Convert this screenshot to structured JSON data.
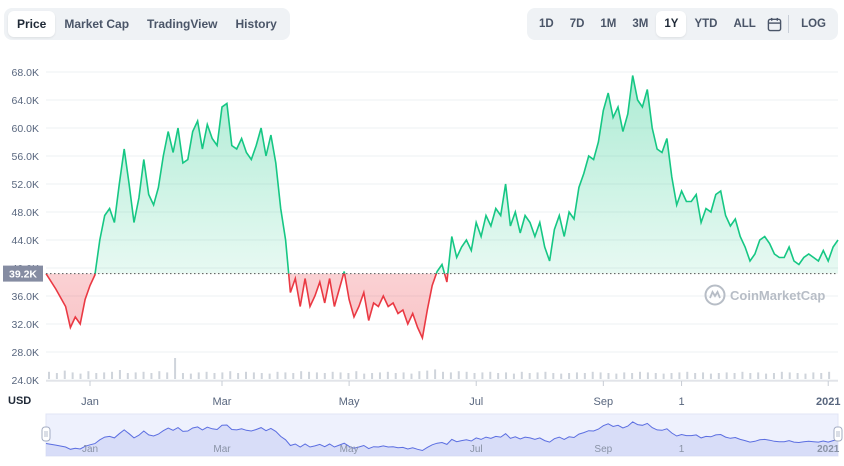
{
  "tabs": [
    {
      "label": "Price",
      "active": true
    },
    {
      "label": "Market Cap",
      "active": false
    },
    {
      "label": "TradingView",
      "active": false
    },
    {
      "label": "History",
      "active": false
    }
  ],
  "ranges": [
    {
      "label": "1D",
      "active": false
    },
    {
      "label": "7D",
      "active": false
    },
    {
      "label": "1M",
      "active": false
    },
    {
      "label": "3M",
      "active": false
    },
    {
      "label": "1Y",
      "active": true
    },
    {
      "label": "YTD",
      "active": false
    },
    {
      "label": "ALL",
      "active": false
    }
  ],
  "log_label": "LOG",
  "calendar_icon": "calendar-icon",
  "currency": "USD",
  "watermark": "CoinMarketCap",
  "colors": {
    "up": "#16c784",
    "down": "#ea3943",
    "baseline": "#555555",
    "volume": "#cfd4db",
    "navigator": "#5b6ee1"
  },
  "chart_data": {
    "type": "line",
    "y_unit": "USD",
    "ylim": [
      24000,
      70000
    ],
    "y_ticks": [
      "24.0K",
      "28.0K",
      "32.0K",
      "36.0K",
      "40.0K",
      "44.0K",
      "48.0K",
      "52.0K",
      "56.0K",
      "60.0K",
      "64.0K",
      "68.0K"
    ],
    "y_tick_values": [
      24000,
      28000,
      32000,
      36000,
      40000,
      44000,
      48000,
      52000,
      56000,
      60000,
      64000,
      68000
    ],
    "x_ticks": [
      "Jan",
      "Mar",
      "May",
      "Jul",
      "Sep",
      "1",
      "2021"
    ],
    "x_tick_positions": [
      0.09,
      0.36,
      0.62,
      0.88,
      1.14,
      1.3,
      1.6
    ],
    "x_range": [
      0.0,
      1.62
    ],
    "baseline": 39200,
    "baseline_label": "39.2K",
    "grid": true,
    "series": [
      {
        "x": [
          0.0,
          0.02,
          0.04,
          0.05,
          0.06,
          0.07,
          0.08,
          0.09,
          0.1,
          0.11,
          0.12,
          0.13,
          0.14,
          0.15,
          0.16,
          0.17,
          0.18,
          0.19,
          0.2,
          0.21,
          0.22,
          0.23,
          0.24,
          0.25,
          0.26,
          0.27,
          0.28,
          0.29,
          0.3,
          0.31,
          0.32,
          0.33,
          0.34,
          0.35,
          0.36,
          0.37,
          0.38,
          0.39,
          0.4,
          0.41,
          0.42,
          0.43,
          0.44,
          0.45,
          0.46,
          0.47,
          0.48,
          0.49,
          0.5,
          0.51,
          0.52,
          0.53,
          0.54,
          0.55,
          0.56,
          0.57,
          0.58,
          0.59,
          0.6,
          0.61,
          0.62,
          0.63,
          0.64,
          0.65,
          0.66,
          0.67,
          0.68,
          0.69,
          0.7,
          0.71,
          0.72,
          0.73,
          0.74,
          0.75,
          0.76,
          0.77,
          0.78,
          0.79,
          0.8,
          0.81,
          0.82,
          0.83,
          0.84,
          0.85,
          0.86,
          0.87,
          0.88,
          0.89,
          0.9,
          0.91,
          0.92,
          0.93,
          0.94,
          0.95,
          0.96,
          0.97,
          0.98,
          0.99,
          1.0,
          1.01,
          1.02,
          1.03,
          1.04,
          1.05,
          1.06,
          1.07,
          1.08,
          1.09,
          1.1,
          1.11,
          1.12,
          1.13,
          1.14,
          1.15,
          1.16,
          1.17,
          1.18,
          1.19,
          1.2,
          1.21,
          1.22,
          1.23,
          1.24,
          1.25,
          1.26,
          1.27,
          1.28,
          1.29,
          1.3,
          1.31,
          1.32,
          1.33,
          1.34,
          1.35,
          1.36,
          1.37,
          1.38,
          1.39,
          1.4,
          1.41,
          1.42,
          1.43,
          1.44,
          1.45,
          1.46,
          1.47,
          1.48,
          1.49,
          1.5,
          1.51,
          1.52,
          1.53,
          1.54,
          1.55,
          1.56,
          1.57,
          1.58,
          1.59,
          1.6,
          1.61,
          1.62
        ],
        "y": [
          39200,
          37000,
          34500,
          31500,
          33000,
          32000,
          35500,
          37500,
          39000,
          44000,
          47500,
          48500,
          46500,
          52000,
          57000,
          52000,
          46500,
          50000,
          55500,
          50500,
          49000,
          51500,
          56000,
          59500,
          56500,
          60000,
          55000,
          55500,
          59500,
          61000,
          57000,
          60500,
          58500,
          57500,
          63000,
          63500,
          57500,
          57000,
          58500,
          56500,
          55500,
          57500,
          60000,
          56000,
          59000,
          55000,
          48500,
          44000,
          36500,
          38500,
          34500,
          38500,
          34500,
          36000,
          38000,
          35000,
          38500,
          34500,
          37000,
          39500,
          35500,
          33000,
          34500,
          36500,
          32500,
          35000,
          34500,
          36000,
          34500,
          35000,
          33500,
          34000,
          32000,
          33500,
          31500,
          30000,
          34000,
          37500,
          39500,
          40500,
          38000,
          44500,
          41500,
          43000,
          44000,
          42500,
          46500,
          44500,
          47500,
          46000,
          48500,
          47500,
          52000,
          46000,
          48000,
          45000,
          47500,
          46500,
          44500,
          46500,
          43000,
          41000,
          45500,
          47500,
          44500,
          48000,
          47000,
          51500,
          53500,
          56000,
          55500,
          58000,
          62500,
          65000,
          61500,
          63000,
          59500,
          62000,
          67500,
          64000,
          63000,
          65500,
          60000,
          57000,
          56500,
          58500,
          53000,
          49000,
          51000,
          49500,
          49500,
          50500,
          46500,
          48500,
          48000,
          50500,
          51000,
          47500,
          46000,
          47000,
          44500,
          43000,
          41000,
          42000,
          44000,
          44500,
          43500,
          42000,
          41500,
          41500,
          43000,
          41000,
          40500,
          41500,
          42000,
          41500,
          41000,
          42500,
          41000,
          43000,
          44000
        ]
      }
    ],
    "volume": [
      0.12,
      0.1,
      0.14,
      0.11,
      0.09,
      0.13,
      0.1,
      0.11,
      0.12,
      0.15,
      0.1,
      0.11,
      0.12,
      0.1,
      0.13,
      0.11,
      0.35,
      0.1,
      0.09,
      0.11,
      0.12,
      0.1,
      0.11,
      0.13,
      0.1,
      0.12,
      0.11,
      0.1,
      0.09,
      0.12,
      0.11,
      0.1,
      0.13,
      0.12,
      0.11,
      0.1,
      0.12,
      0.11,
      0.1,
      0.13,
      0.09,
      0.1,
      0.11,
      0.12,
      0.1,
      0.11,
      0.09,
      0.13,
      0.14,
      0.16,
      0.12,
      0.11,
      0.13,
      0.12,
      0.1,
      0.11,
      0.12,
      0.1,
      0.11,
      0.09,
      0.12,
      0.1,
      0.11,
      0.12,
      0.1,
      0.09,
      0.1,
      0.11,
      0.1,
      0.12,
      0.11,
      0.1,
      0.09,
      0.11,
      0.1,
      0.12,
      0.11,
      0.1,
      0.09,
      0.1,
      0.11,
      0.12,
      0.1,
      0.11,
      0.09,
      0.1,
      0.11,
      0.1,
      0.12,
      0.1,
      0.11,
      0.09,
      0.1,
      0.12,
      0.11,
      0.1,
      0.09,
      0.11,
      0.1,
      0.12
    ]
  }
}
